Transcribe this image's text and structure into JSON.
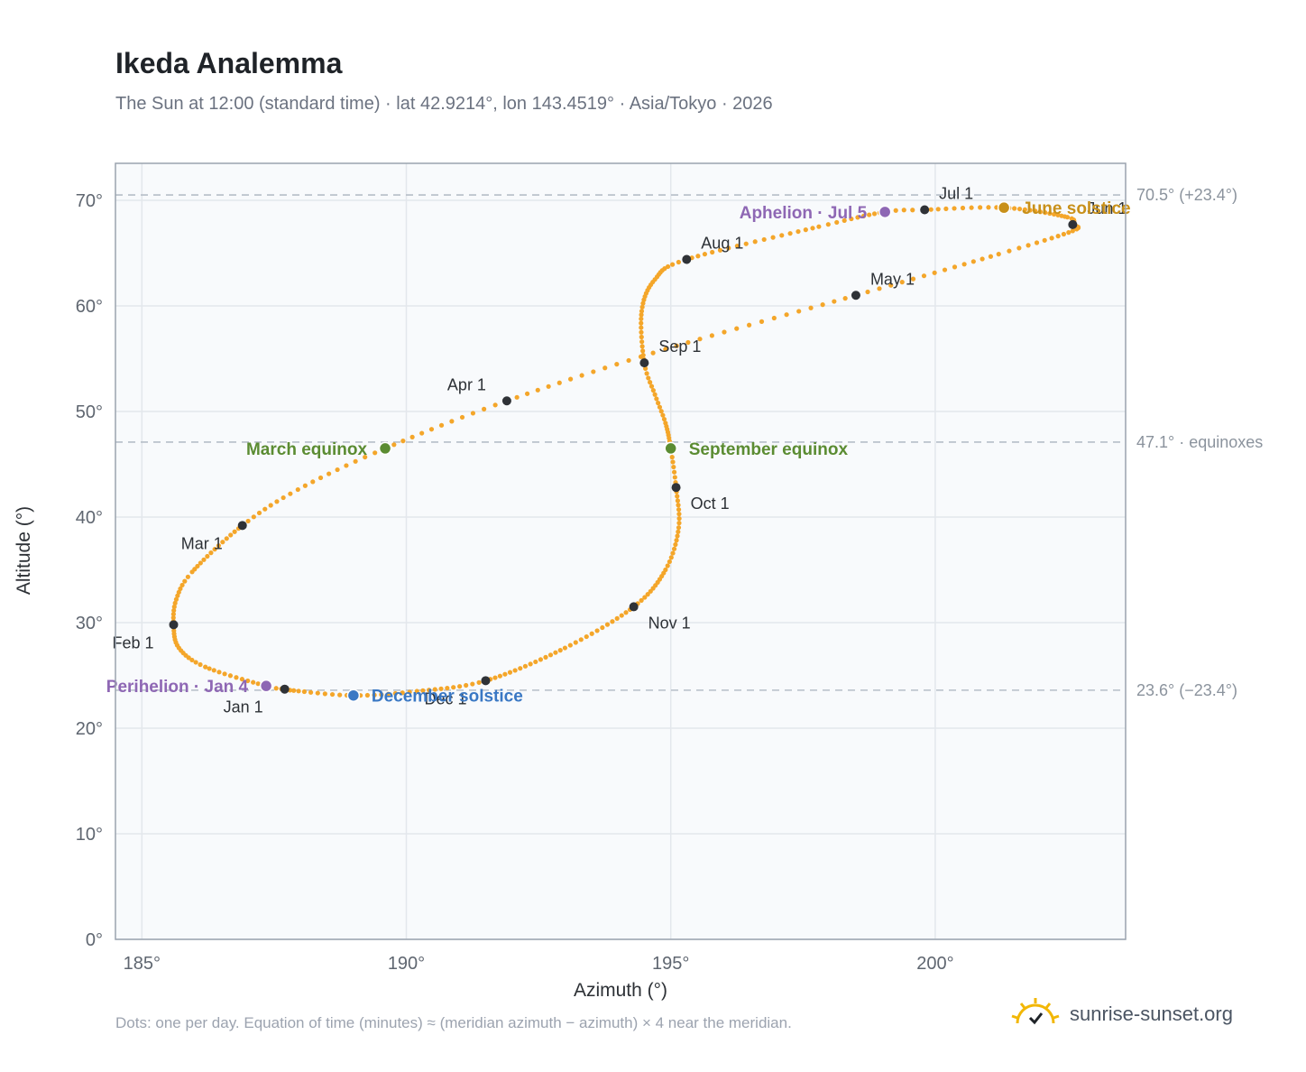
{
  "title": "Ikeda Analemma",
  "subtitle": "The Sun at 12:00 (standard time) · lat 42.9214°, lon 143.4519° · Asia/Tokyo · 2026",
  "footnote": "Dots: one per day. Equation of time (minutes) ≈ (meridian azimuth − azimuth) × 4 near the meridian.",
  "brand": {
    "name": "sunrise-sunset.org",
    "icon": "sun-icon"
  },
  "colors": {
    "curve": "#f4a62a",
    "month_marker": "#2f3237",
    "equinox": "#5b8c32",
    "june_solstice": "#c8901a",
    "december_solstice": "#3a78c4",
    "apsis": "#8e67b4",
    "reference_line": "#b6bec8",
    "plot_bg": "#f8fafc",
    "grid": "#e3e7ec"
  },
  "chart_data": {
    "type": "scatter",
    "xlabel": "Azimuth (°)",
    "ylabel": "Altitude (°)",
    "xlim": [
      184.5,
      203.6
    ],
    "ylim": [
      0,
      73.5
    ],
    "xticks": [
      "185°",
      "190°",
      "195°",
      "200°"
    ],
    "xtick_values": [
      185,
      190,
      195,
      200
    ],
    "yticks": [
      "0°",
      "10°",
      "20°",
      "30°",
      "40°",
      "50°",
      "60°",
      "70°"
    ],
    "ytick_values": [
      0,
      10,
      20,
      30,
      40,
      50,
      60,
      70
    ],
    "grid": true,
    "reference_lines": [
      {
        "y": 70.5,
        "label": "70.5° (+23.4°)"
      },
      {
        "y": 47.1,
        "label": "47.1° · equinoxes"
      },
      {
        "y": 23.6,
        "label": "23.6° (−23.4°)"
      }
    ],
    "series": [
      {
        "keypoints": [
          {
            "date": "2026-01-01",
            "az": 187.7,
            "alt": 23.7
          },
          {
            "date": "2026-01-04",
            "az": 187.35,
            "alt": 24.0
          },
          {
            "date": "2026-01-16",
            "az": 186.2,
            "alt": 25.8
          },
          {
            "date": "2026-01-24",
            "az": 185.7,
            "alt": 27.6
          },
          {
            "date": "2026-02-01",
            "az": 185.6,
            "alt": 29.8
          },
          {
            "date": "2026-02-08",
            "az": 185.65,
            "alt": 32.2
          },
          {
            "date": "2026-02-15",
            "az": 185.95,
            "alt": 34.8
          },
          {
            "date": "2026-03-01",
            "az": 186.9,
            "alt": 39.2
          },
          {
            "date": "2026-03-10",
            "az": 187.95,
            "alt": 42.6
          },
          {
            "date": "2026-03-20",
            "az": 189.6,
            "alt": 46.5
          },
          {
            "date": "2026-04-01",
            "az": 191.9,
            "alt": 51.0
          },
          {
            "date": "2026-04-15",
            "az": 194.9,
            "alt": 55.9
          },
          {
            "date": "2026-05-01",
            "az": 198.5,
            "alt": 61.0
          },
          {
            "date": "2026-05-15",
            "az": 201.2,
            "alt": 64.9
          },
          {
            "date": "2026-05-25",
            "az": 202.6,
            "alt": 67.1
          },
          {
            "date": "2026-06-01",
            "az": 202.6,
            "alt": 67.7
          },
          {
            "date": "2026-06-07",
            "az": 202.5,
            "alt": 68.4
          },
          {
            "date": "2026-06-21",
            "az": 201.3,
            "alt": 69.3
          },
          {
            "date": "2026-07-01",
            "az": 199.8,
            "alt": 69.1
          },
          {
            "date": "2026-07-05",
            "az": 199.05,
            "alt": 68.9
          },
          {
            "date": "2026-07-15",
            "az": 197.8,
            "alt": 67.5
          },
          {
            "date": "2026-08-01",
            "az": 195.3,
            "alt": 64.4
          },
          {
            "date": "2026-08-10",
            "az": 194.7,
            "alt": 62.5
          },
          {
            "date": "2026-08-20",
            "az": 194.45,
            "alt": 59.5
          },
          {
            "date": "2026-09-01",
            "az": 194.5,
            "alt": 54.6
          },
          {
            "date": "2026-09-08",
            "az": 194.7,
            "alt": 51.6
          },
          {
            "date": "2026-09-15",
            "az": 194.9,
            "alt": 48.9
          },
          {
            "date": "2026-09-23",
            "az": 195.0,
            "alt": 46.5
          },
          {
            "date": "2026-10-01",
            "az": 195.1,
            "alt": 42.8
          },
          {
            "date": "2026-10-10",
            "az": 195.15,
            "alt": 39.0
          },
          {
            "date": "2026-10-20",
            "az": 194.9,
            "alt": 35.0
          },
          {
            "date": "2026-11-01",
            "az": 194.3,
            "alt": 31.5
          },
          {
            "date": "2026-11-15",
            "az": 193.0,
            "alt": 27.6
          },
          {
            "date": "2026-12-01",
            "az": 191.5,
            "alt": 24.5
          },
          {
            "date": "2026-12-12",
            "az": 190.2,
            "alt": 23.5
          },
          {
            "date": "2026-12-21",
            "az": 189.0,
            "alt": 23.1
          },
          {
            "date": "2026-12-31",
            "az": 187.8,
            "alt": 23.6
          }
        ]
      }
    ],
    "month_markers": [
      {
        "label": "Jan 1",
        "az": 187.7,
        "alt": 23.7,
        "anchor": "below-left"
      },
      {
        "label": "Feb 1",
        "az": 185.6,
        "alt": 29.8,
        "anchor": "below-left"
      },
      {
        "label": "Mar 1",
        "az": 186.9,
        "alt": 39.2,
        "anchor": "below-left"
      },
      {
        "label": "Apr 1",
        "az": 191.9,
        "alt": 51.0,
        "anchor": "above-left"
      },
      {
        "label": "May 1",
        "az": 198.5,
        "alt": 61.0,
        "anchor": "above-right"
      },
      {
        "label": "Jun 1",
        "az": 202.6,
        "alt": 67.7,
        "anchor": "above-right"
      },
      {
        "label": "Jul 1",
        "az": 199.8,
        "alt": 69.1,
        "anchor": "above-right"
      },
      {
        "label": "Aug 1",
        "az": 195.3,
        "alt": 64.4,
        "anchor": "above-right"
      },
      {
        "label": "Sep 1",
        "az": 194.5,
        "alt": 54.6,
        "anchor": "above-right"
      },
      {
        "label": "Oct 1",
        "az": 195.1,
        "alt": 42.8,
        "anchor": "below-right"
      },
      {
        "label": "Nov 1",
        "az": 194.3,
        "alt": 31.5,
        "anchor": "below-right"
      },
      {
        "label": "Dec 1",
        "az": 191.5,
        "alt": 24.5,
        "anchor": "below-left"
      }
    ],
    "events": [
      {
        "label": "March equinox",
        "az": 189.6,
        "alt": 46.5,
        "color_key": "equinox",
        "side": "left"
      },
      {
        "label": "September equinox",
        "az": 195.0,
        "alt": 46.5,
        "color_key": "equinox",
        "side": "right"
      },
      {
        "label": "June solstice",
        "az": 201.3,
        "alt": 69.3,
        "color_key": "june_solstice",
        "side": "right"
      },
      {
        "label": "December solstice",
        "az": 189.0,
        "alt": 23.1,
        "color_key": "december_solstice",
        "side": "right"
      },
      {
        "label": "Perihelion · Jan 4",
        "az": 187.35,
        "alt": 24.0,
        "color_key": "apsis",
        "side": "left"
      },
      {
        "label": "Aphelion · Jul 5",
        "az": 199.05,
        "alt": 68.9,
        "color_key": "apsis",
        "side": "left"
      }
    ]
  }
}
